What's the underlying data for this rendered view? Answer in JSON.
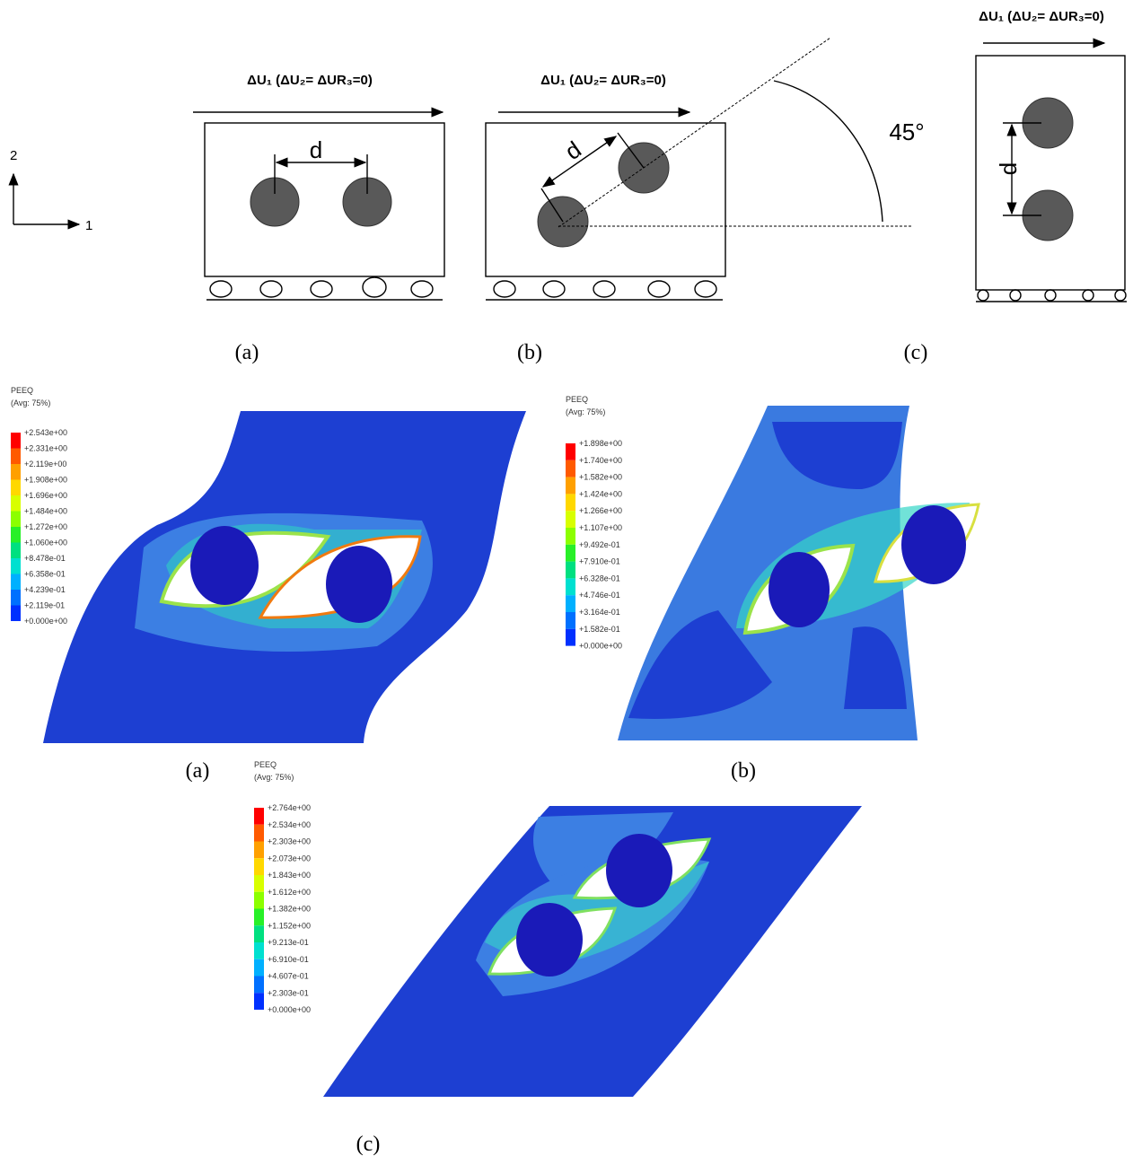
{
  "figure_top": {
    "axes": {
      "vertical": "2",
      "horizontal": "1"
    },
    "panels": [
      {
        "load": "ΔU₁ (ΔU₂= ΔUR₃=0)",
        "distance": "d",
        "label": "(a)"
      },
      {
        "load": "ΔU₁ (ΔU₂= ΔUR₃=0)",
        "distance": "d",
        "angle": "45°",
        "label": "(b)"
      },
      {
        "load": "ΔU₁ (ΔU₂= ΔUR₃=0)",
        "distance": "d",
        "label": "(c)"
      }
    ]
  },
  "figure_bottom": {
    "panels": [
      {
        "label": "(a)",
        "legend": {
          "title": "PEEQ",
          "subtitle": "(Avg: 75%)",
          "values": [
            "+2.543e+00",
            "+2.331e+00",
            "+2.119e+00",
            "+1.908e+00",
            "+1.696e+00",
            "+1.484e+00",
            "+1.272e+00",
            "+1.060e+00",
            "+8.478e-01",
            "+6.358e-01",
            "+4.239e-01",
            "+2.119e-01",
            "+0.000e+00"
          ]
        }
      },
      {
        "label": "(b)",
        "legend": {
          "title": "PEEQ",
          "subtitle": "(Avg: 75%)",
          "values": [
            "+1.898e+00",
            "+1.740e+00",
            "+1.582e+00",
            "+1.424e+00",
            "+1.266e+00",
            "+1.107e+00",
            "+9.492e-01",
            "+7.910e-01",
            "+6.328e-01",
            "+4.746e-01",
            "+3.164e-01",
            "+1.582e-01",
            "+0.000e+00"
          ]
        }
      },
      {
        "label": "(c)",
        "legend": {
          "title": "PEEQ",
          "subtitle": "(Avg: 75%)",
          "values": [
            "+2.764e+00",
            "+2.534e+00",
            "+2.303e+00",
            "+2.073e+00",
            "+1.843e+00",
            "+1.612e+00",
            "+1.382e+00",
            "+1.152e+00",
            "+9.213e-01",
            "+6.910e-01",
            "+4.607e-01",
            "+2.303e-01",
            "+0.000e+00"
          ]
        }
      }
    ]
  }
}
